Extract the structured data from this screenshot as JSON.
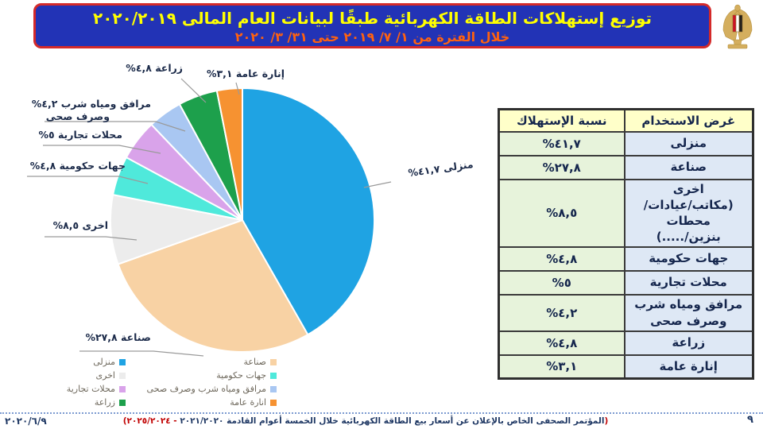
{
  "header": {
    "title_line1": "توزيع إستهلاكات الطاقة الكهربائية طبقًا لبيانات العام المالى ٢٠٢٠/٢٠١٩",
    "title_line2": "خلال الفترة من ١/ ٧/ ٢٠١٩ حتى ٣١/ ٣/ ٢٠٢٠",
    "colors": {
      "bar_bg": "#2233b6",
      "border": "#d42a2a",
      "line1": "#ffff00",
      "line2": "#ff6210"
    },
    "emblem": "egypt-coat-of-arms"
  },
  "chart_data": {
    "type": "pie",
    "title": "توزيع إستهلاكات الطاقة الكهربائية طبقًا لبيانات العام المالى ٢٠١٩/٢٠٢٠ خلال الفترة من ١/٧/٢٠١٩ حتى ٣١/٣/٢٠٢٠",
    "categories": [
      "منزلى",
      "صناعة",
      "اخرى",
      "جهات حكومية",
      "محلات تجارية",
      "مرافق ومياه شرب وصرف صحى",
      "زراعة",
      "إنارة عامة"
    ],
    "values": [
      41.7,
      27.8,
      8.5,
      4.8,
      5.0,
      4.2,
      4.8,
      3.1
    ],
    "display_values": [
      "٤١,٧%",
      "٢٧,٨%",
      "٨,٥%",
      "٤,٨%",
      "٥%",
      "٤,٢%",
      "٤,٨%",
      "٣,١%"
    ],
    "colors": [
      "#1fa3e3",
      "#f8d2a4",
      "#ececec",
      "#4fe9db",
      "#d9a3ea",
      "#a9c7f2",
      "#1da04c",
      "#f69231"
    ],
    "start_angle_deg": 0,
    "direction": "clockwise",
    "unit": "%",
    "legend_position": "bottom-left",
    "pie_labels": [
      {
        "text": "منزلى ٤١,٧%"
      },
      {
        "text": "صناعة ٢٧,٨%"
      },
      {
        "text": "اخرى ٨,٥%"
      },
      {
        "text": "جهات حكومية ٤,٨%"
      },
      {
        "text": "محلات تجارية ٥%"
      },
      {
        "text": "مرافق ومياه شرب ٤,٢%",
        "text2": "وصرف صحى"
      },
      {
        "text": "زراعة ٤,٨%"
      },
      {
        "text": "إنارة عامة ٣,١%"
      }
    ]
  },
  "legend": {
    "left": [
      {
        "label": "منزلى"
      },
      {
        "label": "اخرى"
      },
      {
        "label": "محلات تجارية"
      },
      {
        "label": "زراعة"
      }
    ],
    "right": [
      {
        "label": "صناعة"
      },
      {
        "label": "جهات حكومية"
      },
      {
        "label": "مرافق ومياه شرب وصرف صحى"
      },
      {
        "label": "انارة عامة"
      }
    ]
  },
  "table": {
    "headers": {
      "value": "نسبة الإستهلاك",
      "use": "غرض الاستخدام"
    },
    "rows": [
      {
        "use": "منزلى",
        "value": "٤١,٧%"
      },
      {
        "use": "صناعة",
        "value": "٢٧,٨%"
      },
      {
        "use": "اخرى\n(مكاتب/عيادات/محطات\nبنزين/.....)",
        "value": "٨,٥%"
      },
      {
        "use": "جهات حكومية",
        "value": "٤,٨%"
      },
      {
        "use": "محلات تجارية",
        "value": "٥%"
      },
      {
        "use": "مرافق ومياه شرب\nوصرف صحى",
        "value": "٤,٢%"
      },
      {
        "use": "زراعة",
        "value": "٤,٨%"
      },
      {
        "use": "إنارة عامة",
        "value": "٣,١%"
      }
    ]
  },
  "footer": {
    "date": "٢٠٢٠/٦/٩",
    "note_open": "(",
    "note_body": "المؤتمر الصحفى الخاص بالإعلان عن أسعار بيع الطاقة الكهربائية خلال الخمسة أعوام القادمة ٢٠٢١/٢٠٢٠",
    "note_tail": " - ٢٠٢٥/٢٠٢٤)",
    "page_number": "٩"
  }
}
